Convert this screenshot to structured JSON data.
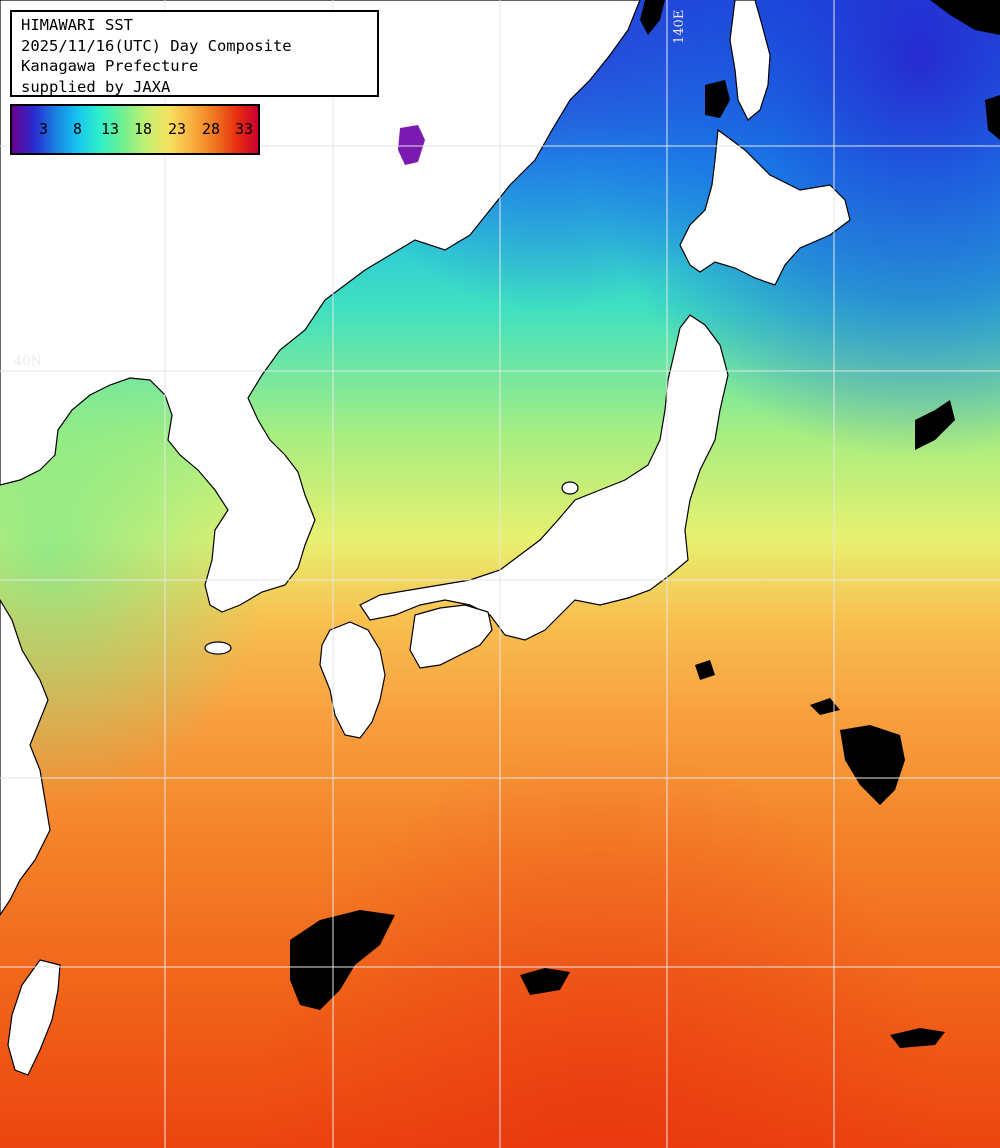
{
  "header": {
    "title": "HIMAWARI SST",
    "date_line": "2025/11/16(UTC) Day Composite",
    "prefecture": "Kanagawa Prefecture",
    "credit": "supplied by JAXA"
  },
  "colorbar": {
    "ticks": [
      "3",
      "8",
      "13",
      "18",
      "23",
      "28",
      "33"
    ],
    "colors": [
      "#6a0090",
      "#2a2ad0",
      "#1a7ae0",
      "#15c8f0",
      "#30f0c8",
      "#70f090",
      "#c8f070",
      "#f8e060",
      "#f8b040",
      "#f07820",
      "#e83010",
      "#c80030"
    ]
  },
  "grid_labels": {
    "lon": "140E",
    "lat": "40N"
  },
  "colors": {
    "land": "#ffffff",
    "coastline": "#000000",
    "cloud_mask": "#000000",
    "grid": "#e6e6e6"
  }
}
